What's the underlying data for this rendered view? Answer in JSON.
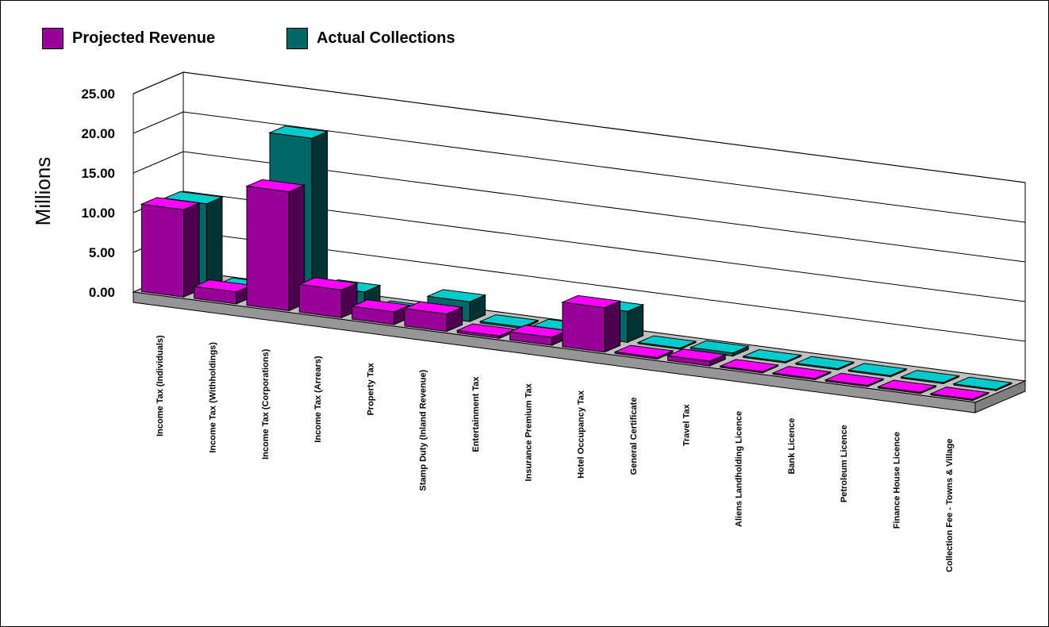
{
  "chart_data": {
    "type": "bar",
    "style": "3d-clustered-columns",
    "ylabel": "Millions",
    "ylim": [
      0,
      25
    ],
    "yticks": [
      "0.00",
      "5.00",
      "10.00",
      "15.00",
      "20.00",
      "25.00"
    ],
    "grid": true,
    "legend_position": "top-left",
    "categories": [
      "Income Tax (Individuals)",
      "Income Tax (Withholdings)",
      "Income Tax (Corporations)",
      "Income Tax (Arrears)",
      "Property Tax",
      "Stamp Duty (Inland Revenue)",
      "Entertainment Tax",
      "Insurance Premium Tax",
      "Hotel Occupancy Tax",
      "General Certificate",
      "Travel Tax",
      "Aliens Landholding Licence",
      "Bank Licence",
      "Petroleum Licence",
      "Finance House Licence",
      "Collection Fee - Towns & Village"
    ],
    "series": [
      {
        "name": "Projected Revenue",
        "color": "#990099",
        "values": [
          11.0,
          1.5,
          15.0,
          3.5,
          1.6,
          2.2,
          0.3,
          1.0,
          5.6,
          0.2,
          0.6,
          0.15,
          0.1,
          0.1,
          0.05,
          0.05
        ]
      },
      {
        "name": "Actual Collections",
        "color": "#006666",
        "values": [
          10.5,
          0.5,
          20.5,
          2.0,
          0.2,
          2.5,
          0.2,
          0.5,
          3.9,
          0.1,
          0.4,
          0.1,
          0.05,
          0.05,
          0.05,
          0.05
        ]
      }
    ]
  }
}
